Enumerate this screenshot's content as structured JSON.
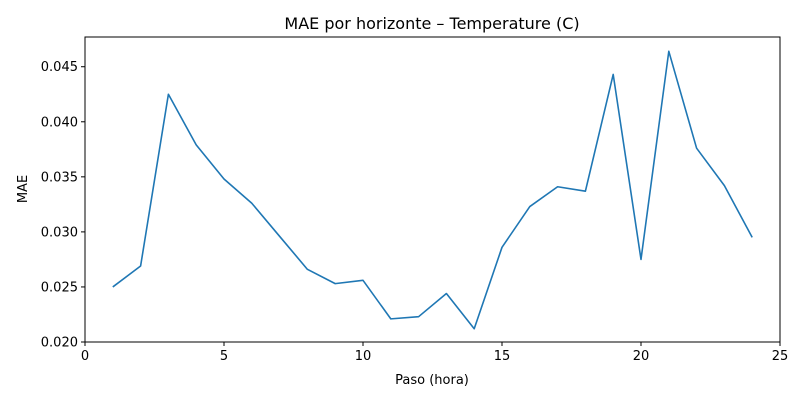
{
  "chart_data": {
    "type": "line",
    "title": "MAE por horizonte – Temperature (C)",
    "xlabel": "Paso (hora)",
    "ylabel": "MAE",
    "xlim": [
      0,
      25
    ],
    "ylim": [
      0.02,
      0.0477
    ],
    "xticks": [
      0,
      5,
      10,
      15,
      20,
      25
    ],
    "yticks": [
      0.02,
      0.025,
      0.03,
      0.035,
      0.04,
      0.045
    ],
    "xtick_labels": [
      "0",
      "5",
      "10",
      "15",
      "20",
      "25"
    ],
    "ytick_labels": [
      "0.020",
      "0.025",
      "0.030",
      "0.035",
      "0.040",
      "0.045"
    ],
    "grid": false,
    "series": [
      {
        "color": "#1f77b4",
        "x": [
          1,
          2,
          3,
          4,
          5,
          6,
          7,
          8,
          9,
          10,
          11,
          12,
          13,
          14,
          15,
          16,
          17,
          18,
          19,
          20,
          21,
          22,
          23,
          24
        ],
        "y": [
          0.025,
          0.0269,
          0.0425,
          0.0379,
          0.0348,
          0.0326,
          0.0296,
          0.0266,
          0.0253,
          0.0256,
          0.0221,
          0.0223,
          0.0244,
          0.0212,
          0.0286,
          0.0323,
          0.0341,
          0.0337,
          0.0443,
          0.0275,
          0.0464,
          0.0376,
          0.0342,
          0.0295
        ]
      }
    ]
  }
}
